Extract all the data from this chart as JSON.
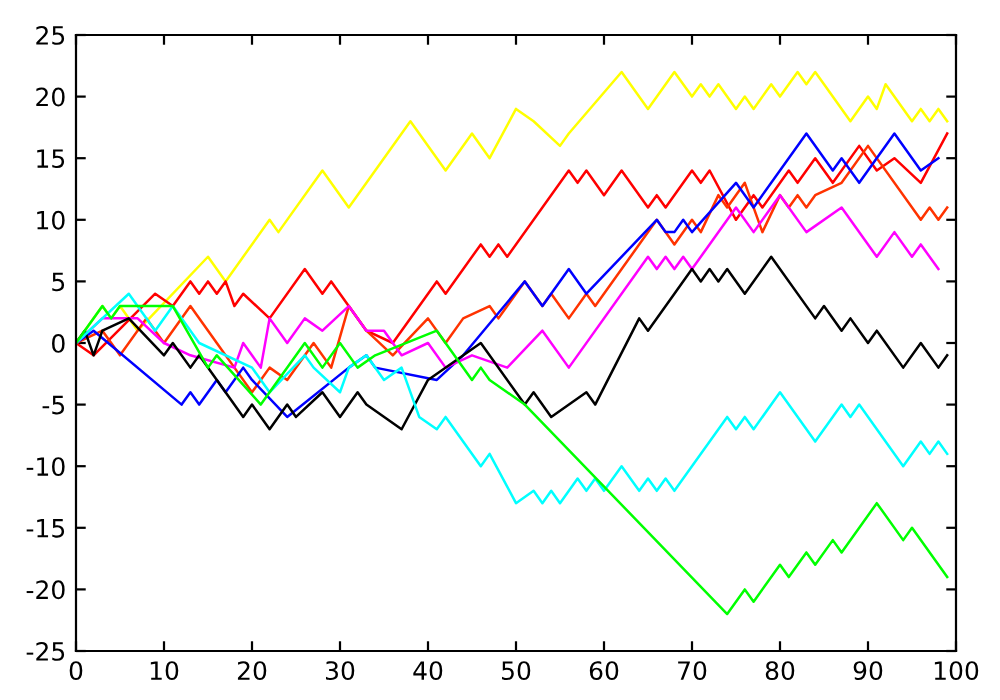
{
  "chart_data": {
    "type": "line",
    "xlim": [
      0,
      100
    ],
    "ylim": [
      -25,
      25
    ],
    "xticks": [
      0,
      10,
      20,
      30,
      40,
      50,
      60,
      70,
      80,
      90,
      100
    ],
    "yticks": [
      -25,
      -20,
      -15,
      -10,
      -5,
      0,
      5,
      10,
      15,
      20,
      25
    ],
    "grid": false,
    "legend": false,
    "marker": "none",
    "line_style": "solid",
    "series": [
      {
        "color": "#ffff00",
        "x": [
          0,
          3,
          4,
          5,
          7,
          15,
          17,
          22,
          23,
          28,
          31,
          38,
          42,
          45,
          47,
          50,
          52,
          55,
          56,
          62,
          65,
          68,
          70,
          71,
          72,
          73,
          75,
          76,
          77,
          79,
          80,
          82,
          83,
          84,
          85,
          88,
          90,
          91,
          92,
          95,
          96,
          97,
          98,
          99
        ],
        "values": [
          0,
          3,
          2,
          3,
          1,
          7,
          5,
          10,
          9,
          14,
          11,
          18,
          14,
          17,
          15,
          19,
          18,
          16,
          17,
          22,
          19,
          22,
          20,
          21,
          20,
          21,
          19,
          20,
          19,
          21,
          20,
          22,
          21,
          22,
          21,
          18,
          20,
          19,
          21,
          18,
          19,
          18,
          19,
          18
        ]
      },
      {
        "color": "#ff0000",
        "x": [
          0,
          2,
          9,
          11,
          13,
          14,
          15,
          16,
          17,
          18,
          19,
          22,
          26,
          28,
          29,
          33,
          36,
          41,
          42,
          46,
          47,
          48,
          49,
          56,
          57,
          58,
          60,
          62,
          65,
          66,
          67,
          70,
          71,
          72,
          75,
          77,
          78,
          81,
          82,
          84,
          86,
          89,
          91,
          93,
          96,
          99
        ],
        "values": [
          0,
          -1,
          4,
          3,
          5,
          4,
          5,
          4,
          5,
          3,
          4,
          2,
          6,
          4,
          5,
          1,
          0,
          5,
          4,
          8,
          7,
          8,
          7,
          14,
          13,
          14,
          12,
          14,
          11,
          12,
          11,
          14,
          13,
          14,
          10,
          12,
          11,
          14,
          13,
          15,
          13,
          16,
          14,
          15,
          13,
          17
        ]
      },
      {
        "color": "#ff3300",
        "x": [
          0,
          3,
          5,
          8,
          10,
          13,
          16,
          18,
          20,
          22,
          24,
          27,
          29,
          31,
          33,
          36,
          40,
          42,
          44,
          47,
          48,
          49,
          51,
          53,
          54,
          56,
          58,
          59,
          66,
          68,
          70,
          71,
          73,
          74,
          76,
          78,
          80,
          81,
          82,
          83,
          84,
          87,
          90,
          96,
          97,
          98,
          99
        ],
        "values": [
          0,
          1,
          -1,
          2,
          0,
          3,
          0,
          -2,
          -4,
          -2,
          -3,
          0,
          -2,
          3,
          1,
          -1,
          2,
          0,
          2,
          3,
          2,
          3,
          5,
          3,
          4,
          2,
          4,
          3,
          10,
          8,
          10,
          9,
          12,
          11,
          13,
          9,
          12,
          11,
          12,
          11,
          12,
          13,
          16,
          10,
          11,
          10,
          11
        ]
      },
      {
        "color": "#0000ff",
        "x": [
          0,
          2,
          12,
          13,
          14,
          16,
          17,
          19,
          20,
          24,
          31,
          33,
          34,
          41,
          44,
          51,
          53,
          56,
          58,
          66,
          67,
          68,
          69,
          70,
          75,
          77,
          83,
          86,
          87,
          89,
          93,
          96,
          98
        ],
        "values": [
          0,
          1,
          -5,
          -4,
          -5,
          -3,
          -4,
          -2,
          -3,
          -6,
          -2,
          -1,
          -2,
          -3,
          -1,
          5,
          3,
          6,
          4,
          10,
          9,
          9,
          10,
          9,
          13,
          11,
          17,
          14,
          15,
          13,
          17,
          14,
          15
        ]
      },
      {
        "color": "#ff00ff",
        "x": [
          0,
          3,
          7,
          10,
          13,
          18,
          19,
          21,
          22,
          24,
          26,
          28,
          31,
          33,
          35,
          37,
          40,
          42,
          45,
          49,
          53,
          56,
          65,
          66,
          67,
          68,
          69,
          70,
          75,
          77,
          80,
          83,
          87,
          91,
          93,
          95,
          96,
          98
        ],
        "values": [
          0,
          2,
          2,
          0,
          -1,
          -2,
          0,
          -2,
          2,
          0,
          2,
          1,
          3,
          1,
          1,
          -1,
          0,
          -2,
          -1,
          -2,
          1,
          -2,
          7,
          6,
          7,
          6,
          7,
          6,
          11,
          9,
          12,
          9,
          11,
          7,
          9,
          7,
          8,
          6
        ]
      },
      {
        "color": "#000000",
        "x": [
          0,
          1,
          2,
          3,
          6,
          10,
          11,
          13,
          14,
          19,
          20,
          22,
          24,
          25,
          28,
          30,
          32,
          33,
          37,
          40,
          46,
          51,
          52,
          54,
          58,
          59,
          64,
          65,
          68,
          70,
          71,
          72,
          73,
          74,
          76,
          79,
          84,
          85,
          87,
          88,
          90,
          91,
          94,
          96,
          98,
          99
        ],
        "values": [
          0,
          1,
          -1,
          1,
          2,
          -1,
          0,
          -2,
          -1,
          -6,
          -5,
          -7,
          -5,
          -6,
          -4,
          -6,
          -4,
          -5,
          -7,
          -3,
          0,
          -5,
          -4,
          -6,
          -4,
          -5,
          2,
          1,
          4,
          6,
          5,
          6,
          5,
          6,
          4,
          7,
          2,
          3,
          1,
          2,
          0,
          1,
          -2,
          0,
          -2,
          -1
        ]
      },
      {
        "color": "#00ffff",
        "x": [
          0,
          6,
          9,
          11,
          14,
          20,
          22,
          26,
          27,
          30,
          31,
          33,
          35,
          37,
          39,
          41,
          42,
          46,
          47,
          50,
          52,
          53,
          54,
          55,
          57,
          58,
          59,
          60,
          62,
          64,
          65,
          66,
          67,
          68,
          74,
          75,
          76,
          77,
          80,
          84,
          87,
          88,
          89,
          94,
          96,
          97,
          98,
          99
        ],
        "values": [
          0,
          4,
          1,
          3,
          0,
          -2,
          -4,
          -1,
          -2,
          -4,
          -2,
          -1,
          -3,
          -2,
          -6,
          -7,
          -6,
          -10,
          -9,
          -13,
          -12,
          -13,
          -12,
          -13,
          -11,
          -12,
          -11,
          -12,
          -10,
          -12,
          -11,
          -12,
          -11,
          -12,
          -6,
          -7,
          -6,
          -7,
          -4,
          -8,
          -5,
          -6,
          -5,
          -10,
          -8,
          -9,
          -8,
          -9
        ]
      },
      {
        "color": "#00ff00",
        "x": [
          0,
          3,
          4,
          5,
          11,
          15,
          16,
          21,
          26,
          28,
          30,
          32,
          34,
          41,
          45,
          46,
          47,
          51,
          74,
          76,
          77,
          80,
          81,
          83,
          84,
          86,
          87,
          91,
          94,
          95,
          99
        ],
        "values": [
          0,
          3,
          2,
          3,
          3,
          -2,
          -1,
          -5,
          0,
          -2,
          0,
          -2,
          -1,
          1,
          -3,
          -2,
          -3,
          -5,
          -22,
          -20,
          -21,
          -18,
          -19,
          -17,
          -18,
          -16,
          -17,
          -13,
          -16,
          -15,
          -19
        ]
      }
    ]
  }
}
